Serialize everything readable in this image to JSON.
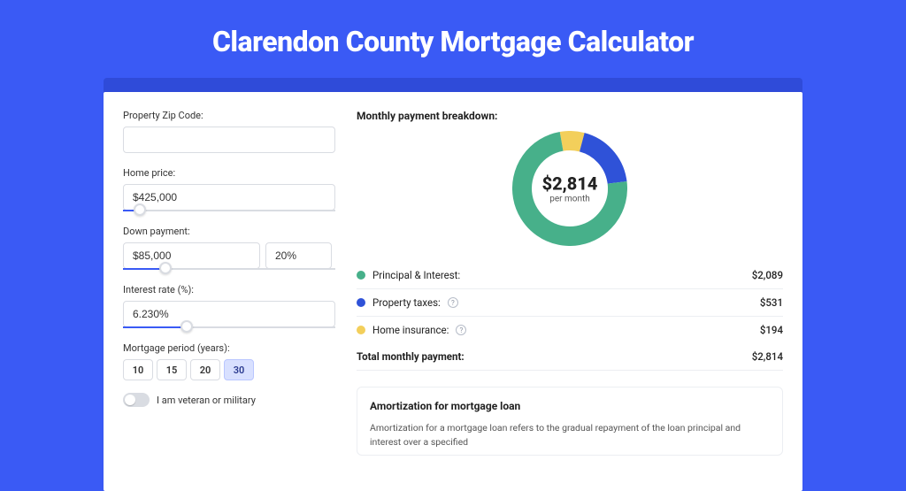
{
  "hero": {
    "title": "Clarendon County Mortgage Calculator"
  },
  "form": {
    "zip": {
      "label": "Property Zip Code:",
      "value": ""
    },
    "home_price": {
      "label": "Home price:",
      "value": "$425,000",
      "slider_pct": 8
    },
    "down_payment": {
      "label": "Down payment:",
      "amount": "$85,000",
      "percent": "20%",
      "slider_pct": 20
    },
    "interest": {
      "label": "Interest rate (%):",
      "value": "6.230%",
      "slider_pct": 30
    },
    "period": {
      "label": "Mortgage period (years):",
      "options": [
        "10",
        "15",
        "20",
        "30"
      ],
      "selected": "30"
    },
    "veteran": {
      "label": "I am veteran or military",
      "value": false
    }
  },
  "breakdown": {
    "title": "Monthly payment breakdown:",
    "center_value": "$2,814",
    "center_sub": "per month",
    "donut": {
      "size": 130,
      "thickness": 22,
      "slices": [
        {
          "name": "Principal & Interest",
          "value": 2089,
          "color": "#47b08a",
          "pct": 74.2
        },
        {
          "name": "Property taxes",
          "value": 531,
          "color": "#2f52d8",
          "pct": 18.9
        },
        {
          "name": "Home insurance",
          "value": 194,
          "color": "#f3cf5b",
          "pct": 6.9
        }
      ]
    },
    "rows": [
      {
        "dot": "#47b08a",
        "label": "Principal & Interest:",
        "info": false,
        "value": "$2,089"
      },
      {
        "dot": "#2f52d8",
        "label": "Property taxes:",
        "info": true,
        "value": "$531"
      },
      {
        "dot": "#f3cf5b",
        "label": "Home insurance:",
        "info": true,
        "value": "$194"
      }
    ],
    "total_label": "Total monthly payment:",
    "total_value": "$2,814"
  },
  "amortization": {
    "title": "Amortization for mortgage loan",
    "body": "Amortization for a mortgage loan refers to the gradual repayment of the loan principal and interest over a specified"
  },
  "colors": {
    "bg": "#3a5af5",
    "accent": "#2f4bd9",
    "principal": "#47b08a",
    "taxes": "#2f52d8",
    "insurance": "#f3cf5b"
  }
}
